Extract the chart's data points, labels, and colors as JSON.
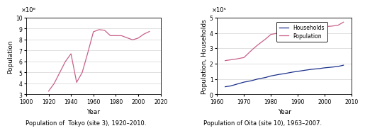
{
  "tokyo": {
    "years": [
      1920,
      1925,
      1930,
      1935,
      1940,
      1945,
      1950,
      1955,
      1960,
      1965,
      1970,
      1975,
      1980,
      1985,
      1990,
      1995,
      2000,
      2005,
      2010
    ],
    "population": [
      3300000,
      4000000,
      5000000,
      6000000,
      6700000,
      4100000,
      5000000,
      6800000,
      8700000,
      8900000,
      8840000,
      8360000,
      8350000,
      8350000,
      8160000,
      7970000,
      8130000,
      8490000,
      8730000
    ],
    "color": "#c8608a",
    "xlabel": "Year",
    "ylabel": "Population",
    "title": "Population of  Tokyo (site 3), 1920–2010.",
    "xlim": [
      1900,
      2020
    ],
    "ylim": [
      3000000,
      10000000
    ],
    "xticks": [
      1900,
      1920,
      1940,
      1960,
      1980,
      2000,
      2020
    ],
    "yticks": [
      3000000,
      4000000,
      5000000,
      6000000,
      7000000,
      8000000,
      9000000,
      10000000
    ],
    "yticklabels": [
      "3",
      "4",
      "5",
      "6",
      "7",
      "8",
      "9",
      "10"
    ],
    "exponent_label": "×10⁶"
  },
  "oita": {
    "population_years": [
      1963,
      1965,
      1967,
      1970,
      1973,
      1975,
      1978,
      1980,
      1983,
      1985,
      1988,
      1990,
      1993,
      1995,
      1998,
      2000,
      2003,
      2005,
      2007
    ],
    "population": [
      220000,
      225000,
      230000,
      240000,
      290000,
      320000,
      360000,
      390000,
      400000,
      405000,
      405000,
      405000,
      420000,
      430000,
      435000,
      440000,
      445000,
      450000,
      470000
    ],
    "households_years": [
      1963,
      1965,
      1967,
      1970,
      1973,
      1975,
      1978,
      1980,
      1983,
      1985,
      1988,
      1990,
      1993,
      1995,
      1998,
      2000,
      2003,
      2005,
      2007
    ],
    "households": [
      50000,
      55000,
      65000,
      80000,
      90000,
      100000,
      110000,
      120000,
      130000,
      135000,
      145000,
      150000,
      158000,
      163000,
      168000,
      173000,
      178000,
      182000,
      190000
    ],
    "pop_color": "#c8608a",
    "hh_color": "#1a2f8a",
    "xlabel": "Year",
    "ylabel": "Population, Households",
    "title": "Population of Oita (site 10), 1963–2007.",
    "xlim": [
      1960,
      2010
    ],
    "ylim": [
      0,
      500000
    ],
    "xticks": [
      1960,
      1970,
      1980,
      1990,
      2000,
      2010
    ],
    "yticks": [
      0,
      100000,
      200000,
      300000,
      400000,
      500000
    ],
    "yticklabels": [
      "0",
      "1",
      "2",
      "3",
      "4",
      "5"
    ],
    "exponent_label": "×10⁵"
  }
}
